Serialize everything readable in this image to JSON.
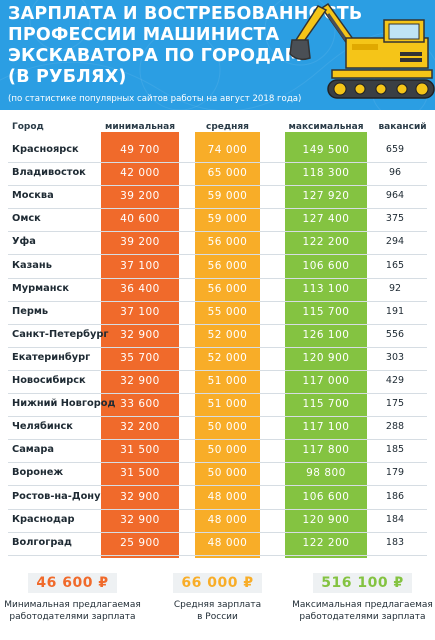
{
  "header": {
    "title_lines": [
      "ЗАРПЛАТА И ВОСТРЕБОВАННОСТЬ",
      "ПРОФЕССИИ МАШИНИСТА",
      "ЭКСКАВАТОРА ПО ГОРОДАМ",
      "(В РУБЛЯХ)"
    ],
    "subtitle": "(по статистике популярных сайтов работы на август 2018 года)"
  },
  "colors": {
    "header_bg": "#2b9ee3",
    "min": "#f06a2b",
    "avg": "#f8ad28",
    "max": "#84c341",
    "excavator": "#f5c518"
  },
  "table": {
    "headers": {
      "city": "Город",
      "min": "минимальная",
      "avg": "средняя",
      "max": "максимальная",
      "vacancies": "вакансий"
    },
    "rows": [
      {
        "city": "Красноярск",
        "min": "49 700",
        "avg": "74 000",
        "max": "149 500",
        "vacancies": "659"
      },
      {
        "city": "Владивосток",
        "min": "42 000",
        "avg": "65 000",
        "max": "118 300",
        "vacancies": "96"
      },
      {
        "city": "Москва",
        "min": "39 200",
        "avg": "59 000",
        "max": "127 920",
        "vacancies": "964"
      },
      {
        "city": "Омск",
        "min": "40 600",
        "avg": "59 000",
        "max": "127 400",
        "vacancies": "375"
      },
      {
        "city": "Уфа",
        "min": "39 200",
        "avg": "56 000",
        "max": "122 200",
        "vacancies": "294"
      },
      {
        "city": "Казань",
        "min": "37 100",
        "avg": "56 000",
        "max": "106 600",
        "vacancies": "165"
      },
      {
        "city": "Мурманск",
        "min": "36 400",
        "avg": "56 000",
        "max": "113 100",
        "vacancies": "92"
      },
      {
        "city": "Пермь",
        "min": "37 100",
        "avg": "55 000",
        "max": "115 700",
        "vacancies": "191"
      },
      {
        "city": "Санкт-Петербург",
        "min": "32 900",
        "avg": "52 000",
        "max": "126 100",
        "vacancies": "556"
      },
      {
        "city": "Екатеринбург",
        "min": "35 700",
        "avg": "52 000",
        "max": "120 900",
        "vacancies": "303"
      },
      {
        "city": "Новосибирск",
        "min": "32 900",
        "avg": "51 000",
        "max": "117 000",
        "vacancies": "429"
      },
      {
        "city": "Нижний Новгород",
        "min": "33 600",
        "avg": "51 000",
        "max": "115 700",
        "vacancies": "175"
      },
      {
        "city": "Челябинск",
        "min": "32 200",
        "avg": "50 000",
        "max": "117 100",
        "vacancies": "288"
      },
      {
        "city": "Самара",
        "min": "31 500",
        "avg": "50 000",
        "max": "117 800",
        "vacancies": "185"
      },
      {
        "city": "Воронеж",
        "min": "31 500",
        "avg": "50 000",
        "max": "98 800",
        "vacancies": "179"
      },
      {
        "city": "Ростов-на-Дону",
        "min": "32 900",
        "avg": "48 000",
        "max": "106 600",
        "vacancies": "186"
      },
      {
        "city": "Краснодар",
        "min": "32 900",
        "avg": "48 000",
        "max": "120 900",
        "vacancies": "184"
      },
      {
        "city": "Волгоград",
        "min": "25 900",
        "avg": "48 000",
        "max": "122 200",
        "vacancies": "183"
      }
    ]
  },
  "summary": {
    "min": {
      "value": "46 600 ₽",
      "label_lines": [
        "Минимальная предлагаемая",
        "работодателями зарплата"
      ]
    },
    "avg": {
      "value": "66 000 ₽",
      "label_lines": [
        "Средняя зарплата",
        "в России"
      ]
    },
    "max": {
      "value": "516 100 ₽",
      "label_lines": [
        "Максимальная предлагаемая",
        "работодателями зарплата"
      ]
    }
  },
  "chart_data": {
    "type": "table",
    "title": "ЗАРПЛАТА И ВОСТРЕБОВАННОСТЬ ПРОФЕССИИ МАШИНИСТА ЭКСКАВАТОРА ПО ГОРОДАМ (В РУБЛЯХ)",
    "subtitle": "(по статистике популярных сайтов работы на август 2018 года)",
    "columns": [
      "Город",
      "минимальная",
      "средняя",
      "максимальная",
      "вакансий"
    ],
    "categories": [
      "Красноярск",
      "Владивосток",
      "Москва",
      "Омск",
      "Уфа",
      "Казань",
      "Мурманск",
      "Пермь",
      "Санкт-Петербург",
      "Екатеринбург",
      "Новосибирск",
      "Нижний Новгород",
      "Челябинск",
      "Самара",
      "Воронеж",
      "Ростов-на-Дону",
      "Краснодар",
      "Волгоград"
    ],
    "series": [
      {
        "name": "минимальная",
        "values": [
          49700,
          42000,
          39200,
          40600,
          39200,
          37100,
          36400,
          37100,
          32900,
          35700,
          32900,
          33600,
          32200,
          31500,
          31500,
          32900,
          32900,
          25900
        ]
      },
      {
        "name": "средняя",
        "values": [
          74000,
          65000,
          59000,
          59000,
          56000,
          56000,
          56000,
          55000,
          52000,
          52000,
          51000,
          51000,
          50000,
          50000,
          50000,
          48000,
          48000,
          48000
        ]
      },
      {
        "name": "максимальная",
        "values": [
          149500,
          118300,
          127920,
          127400,
          122200,
          106600,
          113100,
          115700,
          126100,
          120900,
          117000,
          115700,
          117100,
          117800,
          98800,
          106600,
          120900,
          122200
        ]
      },
      {
        "name": "вакансий",
        "values": [
          659,
          96,
          964,
          375,
          294,
          165,
          92,
          191,
          556,
          303,
          429,
          175,
          288,
          185,
          179,
          186,
          184,
          183
        ]
      }
    ]
  }
}
